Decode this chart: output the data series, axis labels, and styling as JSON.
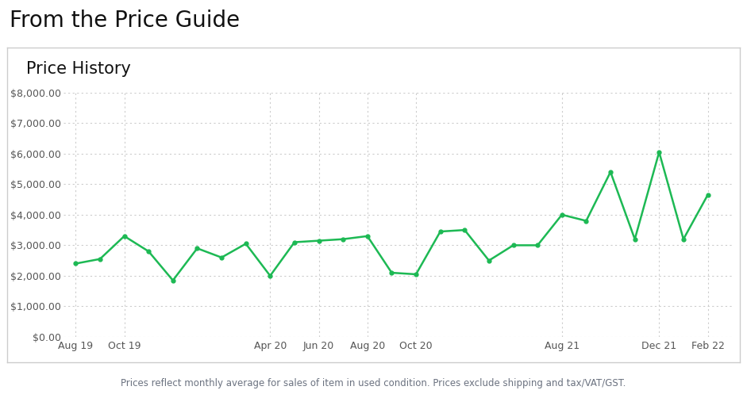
{
  "title_main": "From the Price Guide",
  "title_sub": "Price History",
  "footnote": "Prices reflect monthly average for sales of item in used condition. Prices exclude shipping and tax/VAT/GST.",
  "x_labels": [
    "Aug 19",
    "Oct 19",
    "Apr 20",
    "Jun 20",
    "Aug 20",
    "Oct 20",
    "Aug 21",
    "Dec 21",
    "Feb 22"
  ],
  "x_positions": [
    0,
    2,
    8,
    10,
    12,
    14,
    20,
    24,
    26
  ],
  "data_x": [
    0,
    1,
    2,
    3,
    4,
    5,
    6,
    7,
    8,
    9,
    10,
    11,
    12,
    13,
    14,
    15,
    16,
    17,
    18,
    19,
    20,
    21,
    22,
    23,
    24,
    25,
    26
  ],
  "data_y": [
    2400,
    2550,
    3300,
    2800,
    1850,
    2900,
    2600,
    3050,
    2000,
    3100,
    3150,
    3200,
    3300,
    2100,
    2050,
    3450,
    3500,
    2500,
    3000,
    3000,
    4000,
    3800,
    5400,
    3200,
    6050,
    3200,
    4650
  ],
  "line_color": "#1db954",
  "marker_color": "#1db954",
  "background_outer": "#ffffff",
  "background_inner": "#ffffff",
  "border_color": "#cccccc",
  "grid_color": "#cccccc",
  "ylim": [
    0,
    8000
  ],
  "yticks": [
    0,
    1000,
    2000,
    3000,
    4000,
    5000,
    6000,
    7000,
    8000
  ],
  "title_main_fontsize": 20,
  "subtitle_fontsize": 15,
  "tick_fontsize": 9,
  "footnote_fontsize": 8.5
}
